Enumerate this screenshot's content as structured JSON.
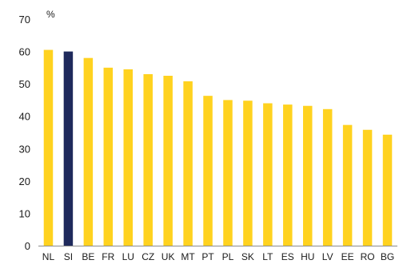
{
  "chart_data": {
    "type": "bar",
    "unit": "%",
    "categories": [
      "NL",
      "SI",
      "BE",
      "FR",
      "LU",
      "CZ",
      "UK",
      "MT",
      "PT",
      "PL",
      "SK",
      "LT",
      "ES",
      "HU",
      "LV",
      "EE",
      "RO",
      "BG"
    ],
    "values": [
      60.5,
      60.0,
      58.0,
      55.0,
      54.5,
      53.0,
      52.5,
      50.8,
      46.3,
      45.0,
      44.8,
      44.0,
      43.6,
      43.2,
      42.2,
      37.3,
      35.8,
      34.3
    ],
    "highlight": "SI",
    "ylim": [
      0,
      70
    ],
    "yticks": [
      0,
      10,
      20,
      30,
      40,
      50,
      60,
      70
    ],
    "grid": false,
    "colors": {
      "bar": "#FFD21F",
      "highlight": "#1F2A5C",
      "axis": "#8c8c8c",
      "title_fragment": "#2f6fb5"
    }
  }
}
